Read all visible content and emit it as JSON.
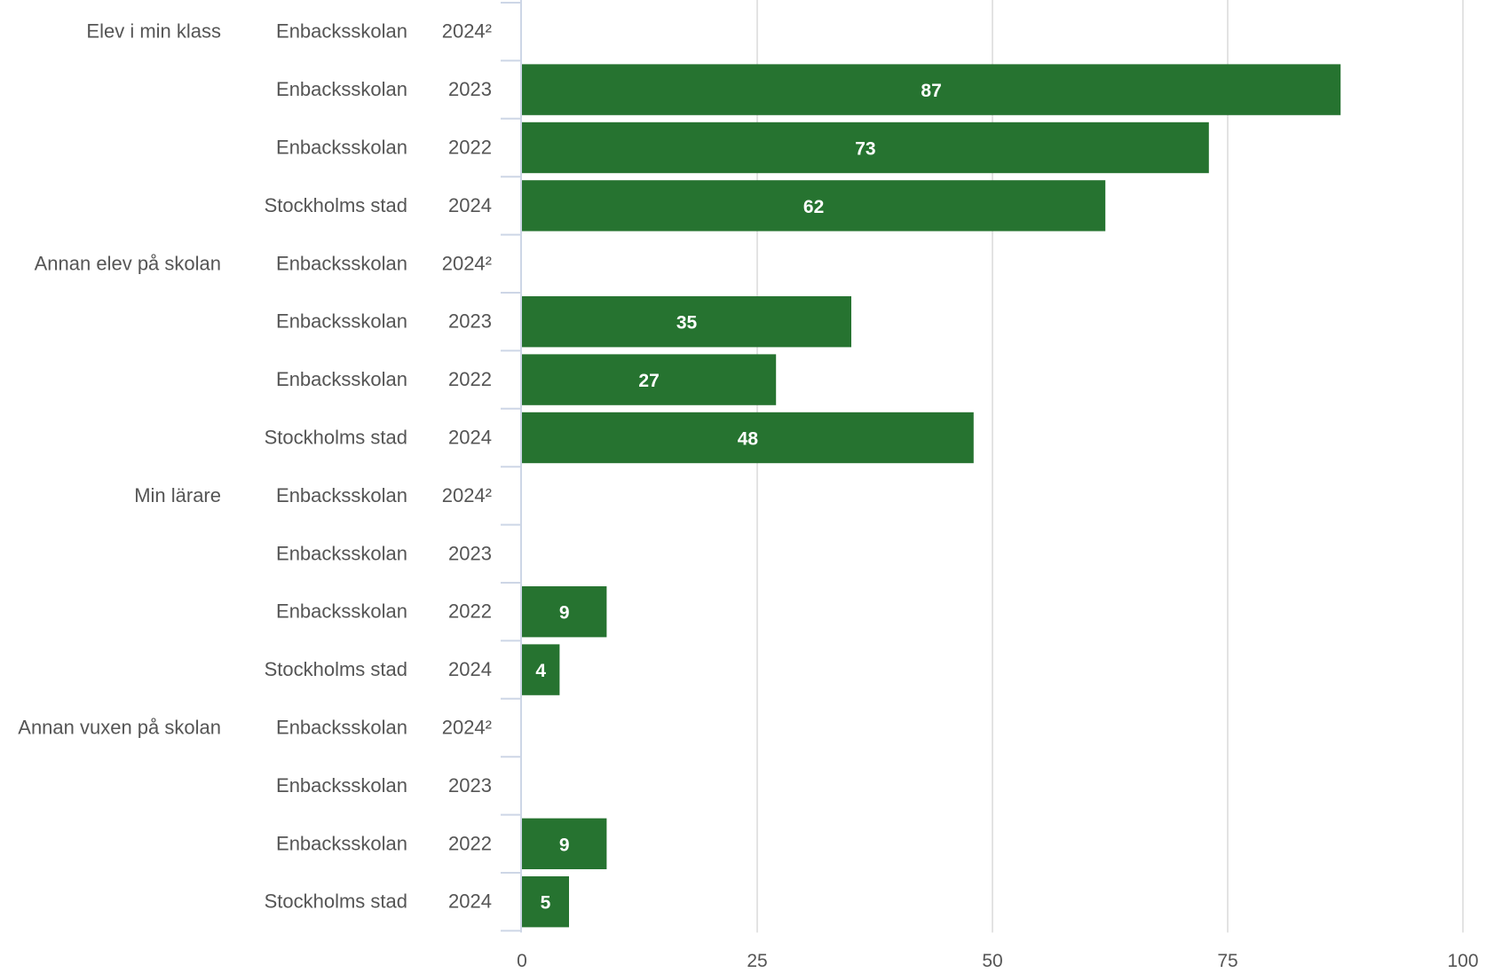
{
  "chart_data": {
    "type": "bar",
    "orientation": "horizontal",
    "xlim": [
      0,
      100
    ],
    "x_ticks": [
      "0",
      "25",
      "50",
      "75",
      "100"
    ],
    "grid": true,
    "bar_color": "#267330",
    "groups": [
      {
        "label": "Elev i min klass",
        "rows": [
          {
            "school": "Enbacksskolan",
            "year": "2024²",
            "value": null
          },
          {
            "school": "Enbacksskolan",
            "year": "2023",
            "value": 87
          },
          {
            "school": "Enbacksskolan",
            "year": "2022",
            "value": 73
          },
          {
            "school": "Stockholms stad",
            "year": "2024",
            "value": 62
          }
        ]
      },
      {
        "label": "Annan elev på skolan",
        "rows": [
          {
            "school": "Enbacksskolan",
            "year": "2024²",
            "value": null
          },
          {
            "school": "Enbacksskolan",
            "year": "2023",
            "value": 35
          },
          {
            "school": "Enbacksskolan",
            "year": "2022",
            "value": 27
          },
          {
            "school": "Stockholms stad",
            "year": "2024",
            "value": 48
          }
        ]
      },
      {
        "label": "Min lärare",
        "rows": [
          {
            "school": "Enbacksskolan",
            "year": "2024²",
            "value": null
          },
          {
            "school": "Enbacksskolan",
            "year": "2023",
            "value": null
          },
          {
            "school": "Enbacksskolan",
            "year": "2022",
            "value": 9
          },
          {
            "school": "Stockholms stad",
            "year": "2024",
            "value": 4
          }
        ]
      },
      {
        "label": "Annan vuxen på skolan",
        "rows": [
          {
            "school": "Enbacksskolan",
            "year": "2024²",
            "value": null
          },
          {
            "school": "Enbacksskolan",
            "year": "2023",
            "value": null
          },
          {
            "school": "Enbacksskolan",
            "year": "2022",
            "value": 9
          },
          {
            "school": "Stockholms stad",
            "year": "2024",
            "value": 5
          }
        ]
      }
    ]
  }
}
